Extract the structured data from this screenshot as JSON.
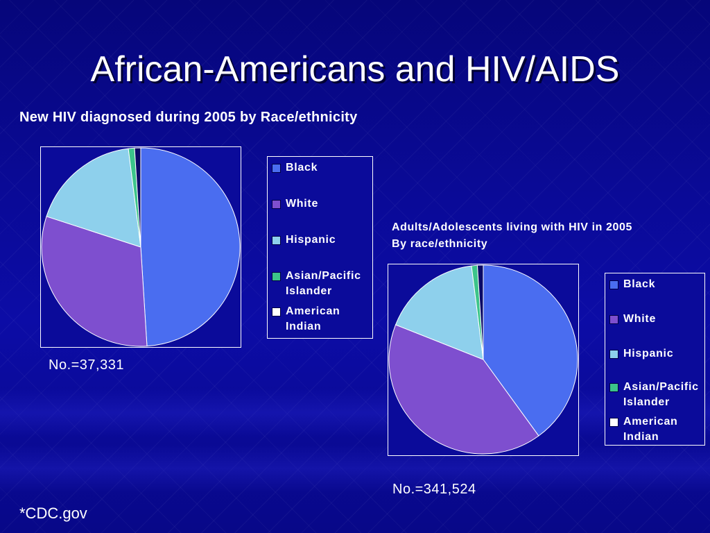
{
  "title": "African-Americans and HIV/AIDS",
  "source": "*CDC.gov",
  "colors": {
    "Black": "#4a6df0",
    "White": "#7e4fcf",
    "Hispanic": "#8ed0ec",
    "Asian/Pacific Islander": "#3cc48a",
    "American Indian": "#0a0a66"
  },
  "chart_data": [
    {
      "type": "pie",
      "title": "New HIV diagnosed during 2005 by Race/ethnicity",
      "count_label": "No.=37,331",
      "categories": [
        "Black",
        "White",
        "Hispanic",
        "Asian/Pacific Islander",
        "American Indian"
      ],
      "values": [
        49,
        31,
        18,
        1,
        1
      ],
      "legend": [
        "Black",
        "White",
        "Hispanic",
        "Asian/Pacific Islander",
        "American Indian"
      ]
    },
    {
      "type": "pie",
      "title": "Adults/Adolescents living with HIV in 2005 By race/ethnicity",
      "title_lines": [
        "Adults/Adolescents living with HIV in 2005",
        "By race/ethnicity"
      ],
      "count_label": "No.=341,524",
      "categories": [
        "Black",
        "White",
        "Hispanic",
        "Asian/Pacific Islander",
        "American Indian"
      ],
      "values": [
        40,
        41,
        17,
        1,
        1
      ],
      "legend": [
        "Black",
        "White",
        "Hispanic",
        "Asian/Pacific Islander",
        "American Indian"
      ]
    }
  ]
}
